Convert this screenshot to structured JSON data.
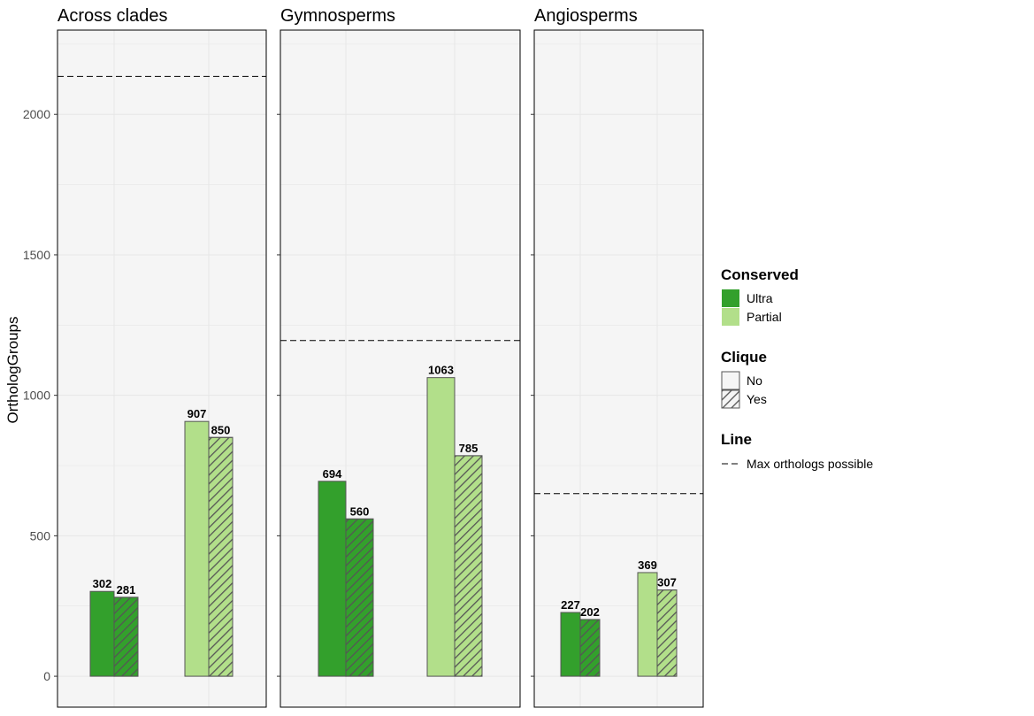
{
  "chart_data": {
    "type": "bar",
    "ylabel": "OrthologGroups",
    "xlabel": "",
    "ylim": [
      -110,
      2300
    ],
    "yticks": [
      0,
      500,
      1000,
      1500,
      2000
    ],
    "grid": true,
    "legend_position": "right",
    "colors": {
      "Ultra": "#33a02c",
      "Partial": "#b2df8a",
      "edge": "#555555",
      "hatch": "#555555",
      "panel_bg": "#f5f5f5",
      "grid": "#e6e6e6"
    },
    "panels": [
      {
        "title": "Across clades",
        "max_line": 2135,
        "bars": [
          {
            "conserved": "Ultra",
            "clique": "No",
            "value": 302,
            "label": "302"
          },
          {
            "conserved": "Ultra",
            "clique": "Yes",
            "value": 281,
            "label": "281"
          },
          {
            "conserved": "Partial",
            "clique": "No",
            "value": 907,
            "label": "907"
          },
          {
            "conserved": "Partial",
            "clique": "Yes",
            "value": 850,
            "label": "850"
          }
        ]
      },
      {
        "title": "Gymnosperms",
        "max_line": 1195,
        "bars": [
          {
            "conserved": "Ultra",
            "clique": "No",
            "value": 694,
            "label": "694"
          },
          {
            "conserved": "Ultra",
            "clique": "Yes",
            "value": 560,
            "label": "560"
          },
          {
            "conserved": "Partial",
            "clique": "No",
            "value": 1063,
            "label": "1063"
          },
          {
            "conserved": "Partial",
            "clique": "Yes",
            "value": 785,
            "label": "785"
          }
        ]
      },
      {
        "title": "Angiosperms",
        "max_line": 650,
        "bars": [
          {
            "conserved": "Ultra",
            "clique": "No",
            "value": 227,
            "label": "227"
          },
          {
            "conserved": "Ultra",
            "clique": "Yes",
            "value": 202,
            "label": "202"
          },
          {
            "conserved": "Partial",
            "clique": "No",
            "value": 369,
            "label": "369"
          },
          {
            "conserved": "Partial",
            "clique": "Yes",
            "value": 307,
            "label": "307"
          }
        ]
      }
    ],
    "legend": {
      "conserved_title": "Conserved",
      "conserved_items": [
        "Ultra",
        "Partial"
      ],
      "clique_title": "Clique",
      "clique_items": [
        "No",
        "Yes"
      ],
      "line_title": "Line",
      "line_items": [
        "Max orthologs possible"
      ]
    }
  }
}
